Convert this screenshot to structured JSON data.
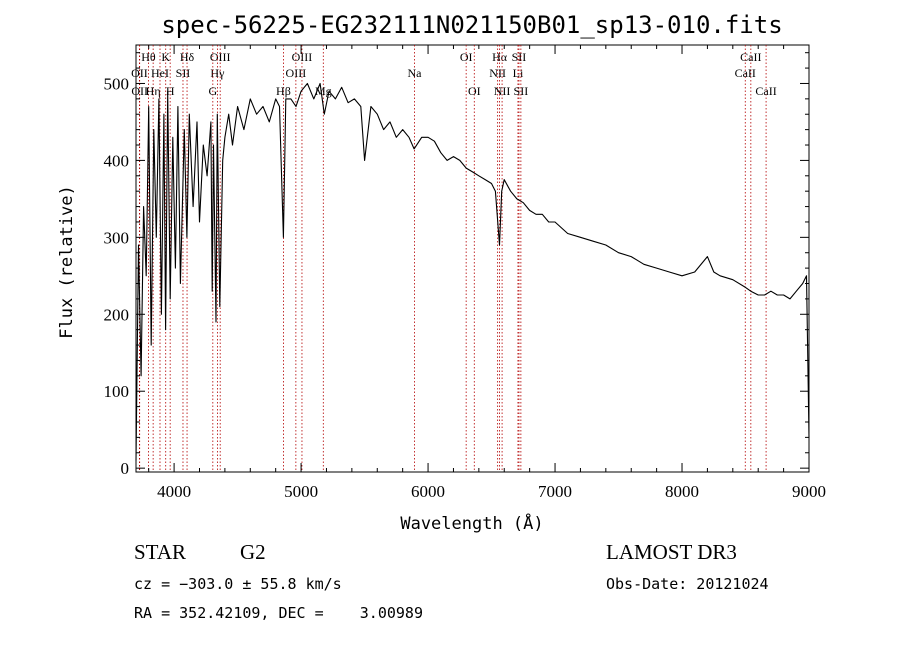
{
  "chart_data": {
    "type": "line",
    "title": "spec-56225-EG232111N021150B01_sp13-010.fits",
    "xlabel": "Wavelength (Å)",
    "ylabel": "Flux (relative)",
    "xlim": [
      3700,
      9000
    ],
    "ylim": [
      -5,
      550
    ],
    "x_ticks": [
      4000,
      5000,
      6000,
      7000,
      8000,
      9000
    ],
    "y_ticks": [
      0,
      100,
      200,
      300,
      400,
      500
    ],
    "series": [
      {
        "name": "flux",
        "x": [
          3700,
          3720,
          3740,
          3760,
          3780,
          3800,
          3820,
          3840,
          3860,
          3880,
          3900,
          3920,
          3933,
          3950,
          3969,
          3990,
          4010,
          4030,
          4050,
          4080,
          4101,
          4120,
          4150,
          4180,
          4200,
          4230,
          4260,
          4290,
          4300,
          4310,
          4330,
          4340,
          4360,
          4383,
          4400,
          4430,
          4460,
          4500,
          4550,
          4600,
          4650,
          4700,
          4750,
          4800,
          4830,
          4861,
          4880,
          4920,
          4960,
          5000,
          5050,
          5100,
          5150,
          5183,
          5220,
          5270,
          5320,
          5370,
          5420,
          5470,
          5500,
          5550,
          5600,
          5650,
          5700,
          5750,
          5800,
          5850,
          5890,
          5950,
          6000,
          6050,
          6100,
          6150,
          6200,
          6250,
          6300,
          6350,
          6400,
          6450,
          6500,
          6530,
          6563,
          6580,
          6600,
          6650,
          6700,
          6750,
          6800,
          6850,
          6900,
          6950,
          7000,
          7100,
          7200,
          7300,
          7400,
          7500,
          7600,
          7700,
          7800,
          7900,
          8000,
          8100,
          8200,
          8250,
          8300,
          8400,
          8500,
          8542,
          8600,
          8650,
          8700,
          8750,
          8800,
          8850,
          8900,
          8950,
          8980,
          8990,
          9000
        ],
        "y": [
          10,
          290,
          120,
          340,
          250,
          470,
          160,
          440,
          300,
          480,
          200,
          460,
          180,
          490,
          220,
          430,
          260,
          470,
          240,
          440,
          300,
          460,
          340,
          450,
          320,
          420,
          380,
          450,
          230,
          420,
          190,
          460,
          210,
          400,
          430,
          460,
          420,
          470,
          440,
          480,
          460,
          470,
          450,
          480,
          470,
          300,
          480,
          480,
          470,
          490,
          500,
          480,
          500,
          460,
          490,
          480,
          495,
          475,
          480,
          470,
          400,
          470,
          460,
          440,
          450,
          430,
          440,
          430,
          415,
          430,
          430,
          425,
          410,
          400,
          405,
          400,
          390,
          385,
          380,
          375,
          370,
          360,
          290,
          360,
          375,
          360,
          350,
          345,
          335,
          330,
          330,
          320,
          320,
          305,
          300,
          295,
          290,
          280,
          275,
          265,
          260,
          255,
          250,
          255,
          275,
          255,
          250,
          245,
          235,
          230,
          225,
          225,
          230,
          225,
          225,
          220,
          230,
          240,
          250,
          150,
          40
        ]
      }
    ],
    "spectral_lines": [
      {
        "label": "Hθ",
        "wavelength": 3798,
        "row": 1
      },
      {
        "label": "OII",
        "wavelength": 3727,
        "row": 2
      },
      {
        "label": "OII",
        "wavelength": 3729,
        "row": 3
      },
      {
        "label": "Hη",
        "wavelength": 3835,
        "row": 3
      },
      {
        "label": "K",
        "wavelength": 3934,
        "row": 1
      },
      {
        "label": "HeI",
        "wavelength": 3889,
        "row": 2
      },
      {
        "label": "SII",
        "wavelength": 4070,
        "row": 2
      },
      {
        "label": "H",
        "wavelength": 3969,
        "row": 3
      },
      {
        "label": "Hδ",
        "wavelength": 4102,
        "row": 1
      },
      {
        "label": "OIII",
        "wavelength": 4363,
        "row": 1
      },
      {
        "label": "Hγ",
        "wavelength": 4341,
        "row": 2
      },
      {
        "label": "G",
        "wavelength": 4305,
        "row": 3
      },
      {
        "label": "OIII",
        "wavelength": 5007,
        "row": 1
      },
      {
        "label": "OIII",
        "wavelength": 4959,
        "row": 2
      },
      {
        "label": "Hβ",
        "wavelength": 4861,
        "row": 3
      },
      {
        "label": "Mg",
        "wavelength": 5175,
        "row": 3
      },
      {
        "label": "Na",
        "wavelength": 5893,
        "row": 2
      },
      {
        "label": "OI",
        "wavelength": 6300,
        "row": 1
      },
      {
        "label": "OI",
        "wavelength": 6364,
        "row": 3
      },
      {
        "label": "Hα",
        "wavelength": 6563,
        "row": 1
      },
      {
        "label": "SII",
        "wavelength": 6716,
        "row": 1
      },
      {
        "label": "NII",
        "wavelength": 6548,
        "row": 2
      },
      {
        "label": "Li",
        "wavelength": 6708,
        "row": 2
      },
      {
        "label": "NII",
        "wavelength": 6583,
        "row": 3
      },
      {
        "label": "SII",
        "wavelength": 6731,
        "row": 3
      },
      {
        "label": "CaII",
        "wavelength": 8542,
        "row": 1
      },
      {
        "label": "CaII",
        "wavelength": 8498,
        "row": 2
      },
      {
        "label": "CaII",
        "wavelength": 8662,
        "row": 3
      }
    ]
  },
  "info": {
    "object_class": "STAR",
    "subclass": "G2",
    "survey": "LAMOST DR3",
    "redshift": "cz = −303.0 ± 55.8 km/s",
    "obs_date": "Obs-Date: 20121024",
    "coords": "RA = 352.42109, DEC =    3.00989"
  }
}
